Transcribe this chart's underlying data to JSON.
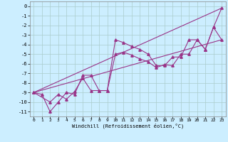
{
  "xlabel": "Windchill (Refroidissement éolien,°C)",
  "background_color": "#cceeff",
  "grid_color": "#aacccc",
  "line_color": "#993388",
  "xlim": [
    -0.5,
    23.5
  ],
  "ylim": [
    -11.5,
    0.5
  ],
  "xticks": [
    0,
    1,
    2,
    3,
    4,
    5,
    6,
    7,
    8,
    9,
    10,
    11,
    12,
    13,
    14,
    15,
    16,
    17,
    18,
    19,
    20,
    21,
    22,
    23
  ],
  "yticks": [
    0,
    -1,
    -2,
    -3,
    -4,
    -5,
    -6,
    -7,
    -8,
    -9,
    -10,
    -11
  ],
  "line1_x": [
    0,
    1,
    2,
    3,
    4,
    5,
    6,
    7,
    8,
    9,
    10,
    11,
    12,
    13,
    14,
    15,
    16,
    17,
    18,
    19,
    20,
    21,
    22,
    23
  ],
  "line1_y": [
    -9.0,
    -9.2,
    -11.0,
    -10.0,
    -9.0,
    -9.2,
    -7.2,
    -7.2,
    -8.8,
    -8.8,
    -3.5,
    -3.8,
    -4.2,
    -4.5,
    -5.0,
    -6.2,
    -6.2,
    -5.3,
    -5.3,
    -3.5,
    -3.5,
    -4.5,
    -2.2,
    -3.5
  ],
  "line2_x": [
    0,
    2,
    3,
    4,
    5,
    6,
    7,
    8,
    9,
    10,
    11,
    12,
    13,
    14,
    15,
    16,
    17,
    18,
    19,
    20,
    21,
    22,
    23
  ],
  "line2_y": [
    -9.0,
    -10.0,
    -9.2,
    -9.7,
    -8.9,
    -7.5,
    -8.8,
    -8.8,
    -8.8,
    -5.0,
    -4.8,
    -5.1,
    -5.5,
    -5.8,
    -6.4,
    -6.1,
    -6.2,
    -5.0,
    -5.0,
    -3.5,
    -4.5,
    -2.2,
    -0.2
  ],
  "line3_x": [
    0,
    23
  ],
  "line3_y": [
    -9.0,
    -0.2
  ],
  "line4_x": [
    0,
    23
  ],
  "line4_y": [
    -9.0,
    -3.5
  ],
  "marker": "^",
  "markersize": 2.5,
  "linewidth": 0.8
}
